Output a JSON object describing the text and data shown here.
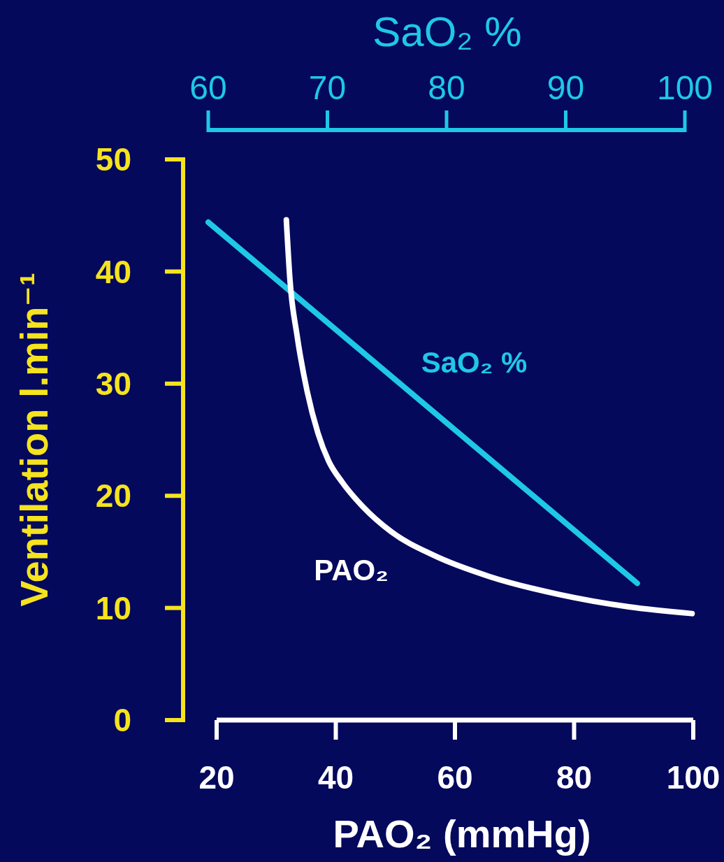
{
  "chart_data": {
    "type": "line",
    "xlabel": "PAO₂ (mmHg)",
    "x2label": "SaO₂ %",
    "ylabel": "Ventilation l.min⁻¹",
    "xlim": [
      20,
      100
    ],
    "xticks": [
      20,
      40,
      60,
      80,
      100
    ],
    "x2lim": [
      60,
      100
    ],
    "x2ticks": [
      60,
      70,
      80,
      90,
      100
    ],
    "ylim": [
      0,
      50
    ],
    "yticks": [
      0,
      10,
      20,
      30,
      40,
      50
    ],
    "grid": false,
    "legend": false,
    "marker": "none",
    "line_style": "solid",
    "series": [
      {
        "name": "SaO₂ %",
        "axis": "x2",
        "color": "#1ec8e6",
        "x": [
          60,
          96
        ],
        "values": [
          44.4,
          12.2
        ]
      },
      {
        "name": "PAO₂",
        "color": "#ffffff",
        "x": [
          31.7,
          32.3,
          33.5,
          35.2,
          37.0,
          38.8,
          41.1,
          44.6,
          49.3,
          56.4,
          65.8,
          77.5,
          89.2,
          99.8
        ],
        "values": [
          44.6,
          39.3,
          34.3,
          29.3,
          25.6,
          23.1,
          21.2,
          19.0,
          16.8,
          14.7,
          12.8,
          11.2,
          10.1,
          9.5
        ]
      }
    ]
  }
}
